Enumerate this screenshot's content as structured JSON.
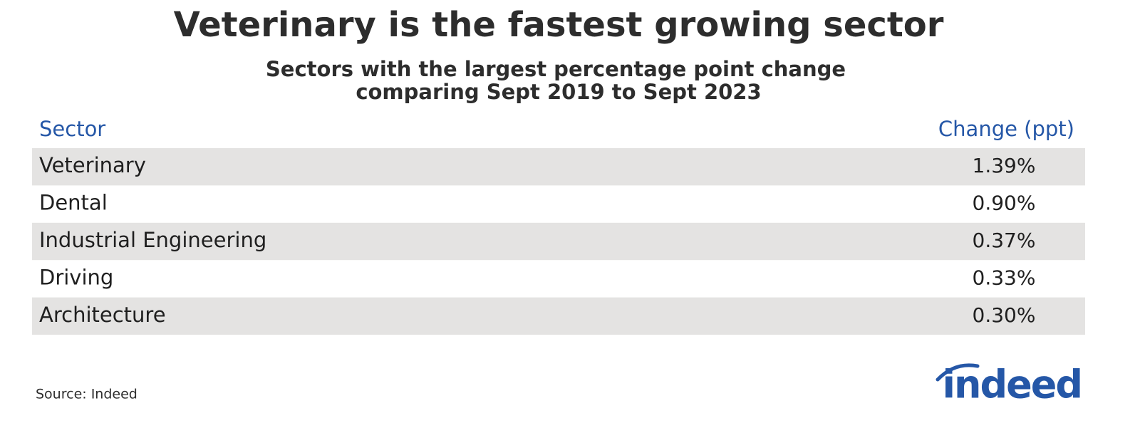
{
  "header": {
    "title": "Veterinary is the fastest growing sector",
    "subtitle": [
      "Sectors with the largest percentage point change",
      "comparing Sept 2019 to Sept 2023"
    ]
  },
  "table": {
    "columns": [
      "Sector",
      "Change (ppt)"
    ],
    "rows": [
      [
        "Veterinary",
        "1.39%"
      ],
      [
        "Dental",
        "0.90%"
      ],
      [
        "Industrial Engineering",
        "0.37%"
      ],
      [
        "Driving",
        "0.33%"
      ],
      [
        "Architecture",
        "0.30%"
      ]
    ]
  },
  "source": "Source: Indeed",
  "logo": "indeed"
}
